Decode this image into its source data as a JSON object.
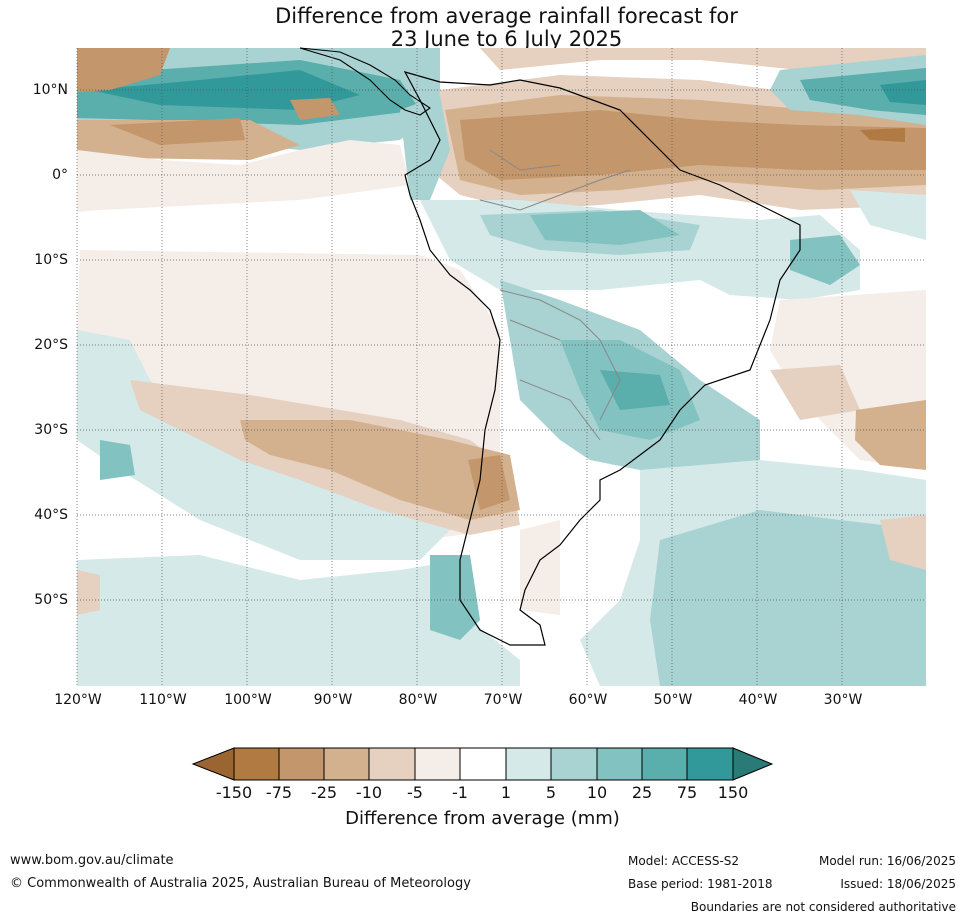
{
  "title": {
    "line1": "Difference from average rainfall forecast for",
    "line2": "23 June to 6 July 2025"
  },
  "map": {
    "lon_range": [
      -120,
      -20
    ],
    "lat_range": [
      -60,
      15
    ],
    "gridlines": true,
    "lat_ticks": [
      {
        "value": 10,
        "label": "10°N"
      },
      {
        "value": 0,
        "label": "0°"
      },
      {
        "value": -10,
        "label": "10°S"
      },
      {
        "value": -20,
        "label": "20°S"
      },
      {
        "value": -30,
        "label": "30°S"
      },
      {
        "value": -40,
        "label": "40°S"
      },
      {
        "value": -50,
        "label": "50°S"
      }
    ],
    "lon_ticks": [
      {
        "value": -120,
        "label": "120°W"
      },
      {
        "value": -110,
        "label": "110°W"
      },
      {
        "value": -100,
        "label": "100°W"
      },
      {
        "value": -90,
        "label": "90°W"
      },
      {
        "value": -80,
        "label": "80°W"
      },
      {
        "value": -70,
        "label": "70°W"
      },
      {
        "value": -60,
        "label": "60°W"
      },
      {
        "value": -50,
        "label": "50°W"
      },
      {
        "value": -40,
        "label": "40°W"
      },
      {
        "value": -30,
        "label": "30°W"
      }
    ]
  },
  "colorbar": {
    "label": "Difference from average (mm)",
    "tick_labels": [
      "-150",
      "-75",
      "-25",
      "-10",
      "-5",
      "-1",
      "1",
      "5",
      "10",
      "25",
      "75",
      "150"
    ],
    "colors": [
      "#9b6532",
      "#b07a42",
      "#c4966b",
      "#d3b18e",
      "#e6d0bf",
      "#f5ede8",
      "#ffffff",
      "#d4e9e8",
      "#a9d3d2",
      "#82c2c0",
      "#5aaeab",
      "#31999a",
      "#2a7a78"
    ]
  },
  "footer": {
    "url": "www.bom.gov.au/climate",
    "copyright": "© Commonwealth of Australia 2025, Australian Bureau of Meteorology",
    "model": "Model: ACCESS-S2",
    "base_period": "Base period: 1981-2018",
    "model_run": "Model run: 16/06/2025",
    "issued": "Issued: 18/06/2025",
    "disclaimer": "Boundaries are not considered authoritative"
  }
}
